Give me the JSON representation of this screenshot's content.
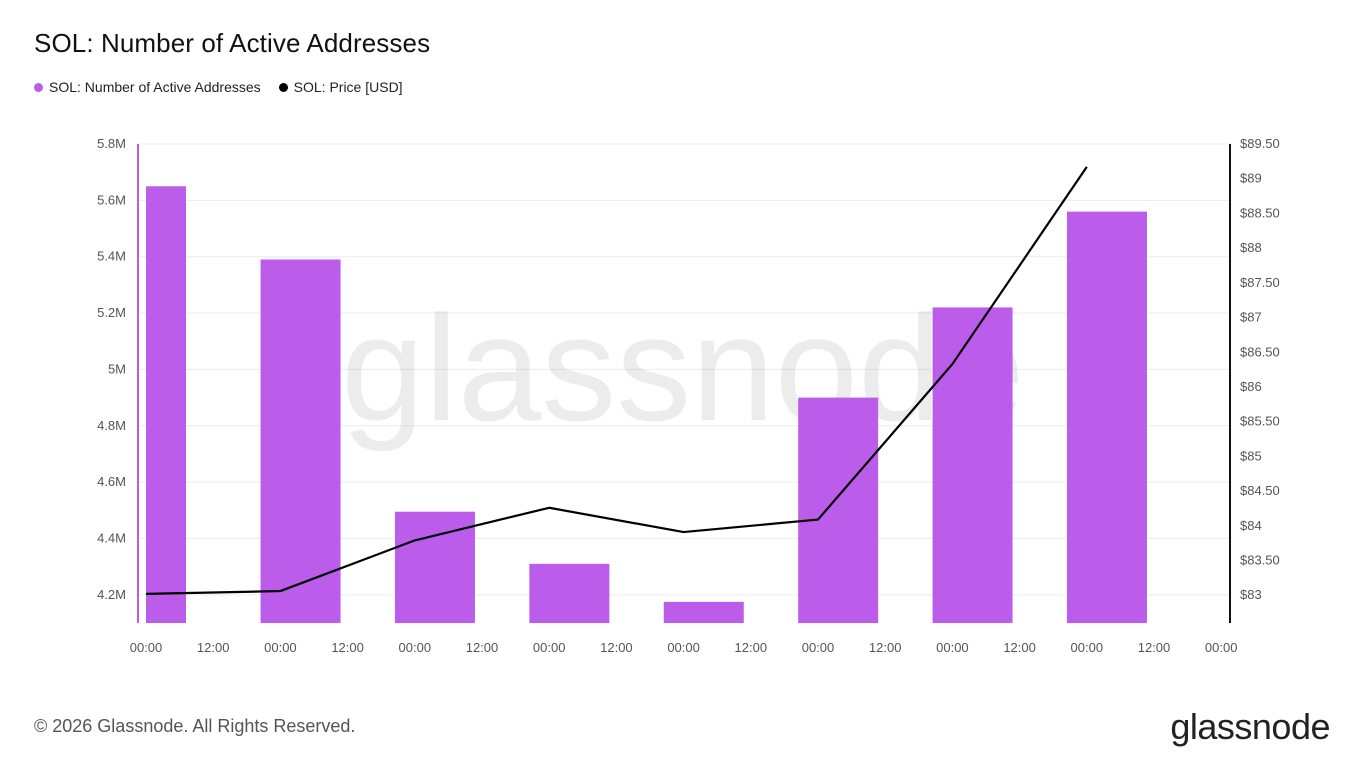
{
  "chart_data": {
    "type": "bar",
    "title": "SOL: Number of Active Addresses",
    "x_tick_labels": [
      "00:00",
      "12:00",
      "00:00",
      "12:00",
      "00:00",
      "12:00",
      "00:00",
      "12:00",
      "00:00",
      "12:00",
      "00:00",
      "12:00",
      "00:00",
      "12:00",
      "00:00",
      "12:00",
      "00:00"
    ],
    "series": [
      {
        "name": "SOL: Number of Active Addresses",
        "type": "bar",
        "axis": "left",
        "color": "#bb5cea",
        "values": [
          5650000,
          5390000,
          4495000,
          4310000,
          4175000,
          4900000,
          5220000,
          5560000
        ]
      },
      {
        "name": "SOL: Price [USD]",
        "type": "line",
        "axis": "right",
        "color": "#000000",
        "values": [
          83.02,
          83.06,
          83.79,
          84.26,
          83.91,
          84.09,
          86.33,
          89.17
        ]
      }
    ],
    "y_left": {
      "min": 4100000,
      "max": 5800000,
      "ticks": [
        4200000,
        4400000,
        4600000,
        4800000,
        5000000,
        5200000,
        5400000,
        5600000,
        5800000
      ],
      "tick_labels": [
        "4.2M",
        "4.4M",
        "4.6M",
        "4.8M",
        "5M",
        "5.2M",
        "5.4M",
        "5.6M",
        "5.8M"
      ]
    },
    "y_right": {
      "min": 82.6,
      "max": 89.5,
      "ticks": [
        83,
        83.5,
        84,
        84.5,
        85,
        85.5,
        86,
        86.5,
        87,
        87.5,
        88,
        88.5,
        89,
        89.5
      ],
      "tick_labels": [
        "$83",
        "$83.50",
        "$84",
        "$84.50",
        "$85",
        "$85.50",
        "$86",
        "$86.50",
        "$87",
        "$87.50",
        "$88",
        "$88.50",
        "$89",
        "$89.50"
      ]
    },
    "grid": true,
    "legend_position": "top-left",
    "watermark": "glassnode"
  },
  "legend": {
    "item1": "SOL: Number of Active Addresses",
    "item2": "SOL: Price [USD]"
  },
  "footer": "© 2026 Glassnode. All Rights Reserved.",
  "brand": "glassnode"
}
